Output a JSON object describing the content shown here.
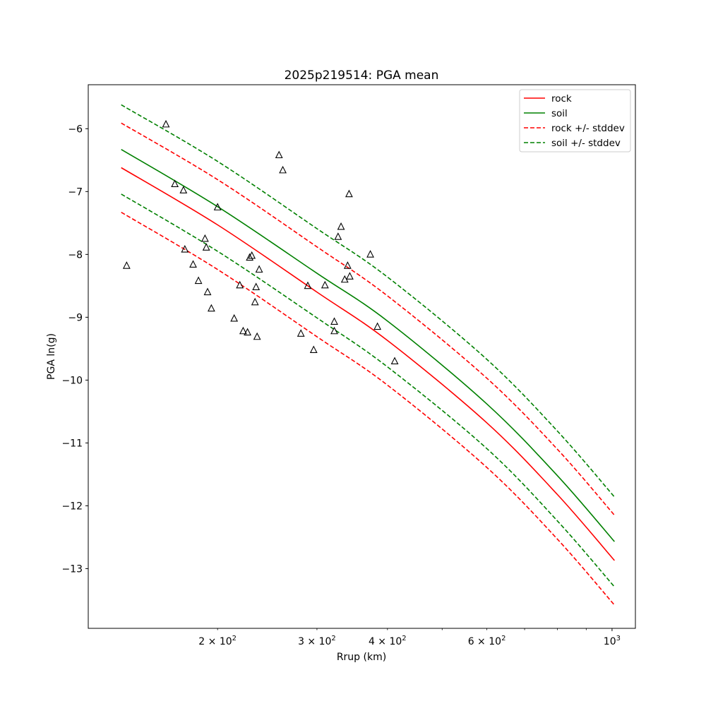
{
  "chart_data": {
    "type": "line",
    "title": "2025p219514: PGA mean",
    "xlabel": "Rrup (km)",
    "ylabel": "PGA ln(g)",
    "xscale": "log",
    "xlim": [
      118,
      1100
    ],
    "ylim": [
      -13.95,
      -5.3
    ],
    "xticks": [
      {
        "value": 200,
        "label": "2 × 10",
        "exp": "2"
      },
      {
        "value": 300,
        "label": "3 × 10",
        "exp": "2"
      },
      {
        "value": 400,
        "label": "4 × 10",
        "exp": "2"
      },
      {
        "value": 600,
        "label": "6 × 10",
        "exp": "2"
      },
      {
        "value": 1000,
        "label": "10",
        "exp": "3"
      }
    ],
    "xminor": [
      200,
      300,
      400,
      500,
      600,
      700,
      800,
      900
    ],
    "yticks": [
      -6,
      -7,
      -8,
      -9,
      -10,
      -11,
      -12,
      -13
    ],
    "grid": false,
    "legend_position": "top-right",
    "curve_x": [
      135,
      200,
      300,
      400,
      600,
      800,
      1010
    ],
    "series": [
      {
        "name": "rock",
        "color": "#ff0000",
        "style": "solid",
        "values": [
          -6.62,
          -7.53,
          -8.6,
          -9.37,
          -10.68,
          -11.82,
          -12.87
        ]
      },
      {
        "name": "soil",
        "color": "#008000",
        "style": "solid",
        "values": [
          -6.33,
          -7.24,
          -8.3,
          -9.06,
          -10.38,
          -11.52,
          -12.57
        ]
      },
      {
        "name": "rock +/- stddev",
        "color": "#ff0000",
        "style": "dashed",
        "values": [
          -5.91,
          -6.81,
          -7.88,
          -8.66,
          -9.97,
          -11.1,
          -12.15
        ]
      },
      {
        "name": "",
        "color": "#ff0000",
        "style": "dashed",
        "values": [
          -7.33,
          -8.24,
          -9.31,
          -10.08,
          -11.39,
          -12.53,
          -13.58
        ]
      },
      {
        "name": "soil +/- stddev",
        "color": "#008000",
        "style": "dashed",
        "values": [
          -5.62,
          -6.52,
          -7.59,
          -8.36,
          -9.67,
          -10.81,
          -11.86
        ]
      },
      {
        "name": "",
        "color": "#008000",
        "style": "dashed",
        "values": [
          -7.04,
          -7.95,
          -9.01,
          -9.79,
          -11.09,
          -12.24,
          -13.29
        ]
      }
    ],
    "observations": [
      {
        "x": 138,
        "y": -8.18
      },
      {
        "x": 162,
        "y": -5.93
      },
      {
        "x": 168,
        "y": -6.88
      },
      {
        "x": 174,
        "y": -6.98
      },
      {
        "x": 175,
        "y": -7.92
      },
      {
        "x": 181,
        "y": -8.16
      },
      {
        "x": 185,
        "y": -8.42
      },
      {
        "x": 190,
        "y": -7.75
      },
      {
        "x": 191,
        "y": -7.89
      },
      {
        "x": 192,
        "y": -8.6
      },
      {
        "x": 195,
        "y": -8.86
      },
      {
        "x": 200,
        "y": -7.25
      },
      {
        "x": 214,
        "y": -9.02
      },
      {
        "x": 219,
        "y": -8.49
      },
      {
        "x": 222,
        "y": -9.22
      },
      {
        "x": 226,
        "y": -9.24
      },
      {
        "x": 228,
        "y": -8.05
      },
      {
        "x": 230,
        "y": -8.02
      },
      {
        "x": 233,
        "y": -8.76
      },
      {
        "x": 234,
        "y": -8.52
      },
      {
        "x": 235,
        "y": -9.31
      },
      {
        "x": 237,
        "y": -8.24
      },
      {
        "x": 257,
        "y": -6.42
      },
      {
        "x": 261,
        "y": -6.66
      },
      {
        "x": 281,
        "y": -9.26
      },
      {
        "x": 289,
        "y": -8.5
      },
      {
        "x": 296,
        "y": -9.52
      },
      {
        "x": 310,
        "y": -8.49
      },
      {
        "x": 322,
        "y": -9.07
      },
      {
        "x": 322,
        "y": -9.22
      },
      {
        "x": 327,
        "y": -7.72
      },
      {
        "x": 331,
        "y": -7.56
      },
      {
        "x": 336,
        "y": -8.4
      },
      {
        "x": 340,
        "y": -8.18
      },
      {
        "x": 342,
        "y": -7.04
      },
      {
        "x": 343,
        "y": -8.35
      },
      {
        "x": 373,
        "y": -8.0
      },
      {
        "x": 384,
        "y": -9.15
      },
      {
        "x": 412,
        "y": -9.7
      }
    ]
  }
}
